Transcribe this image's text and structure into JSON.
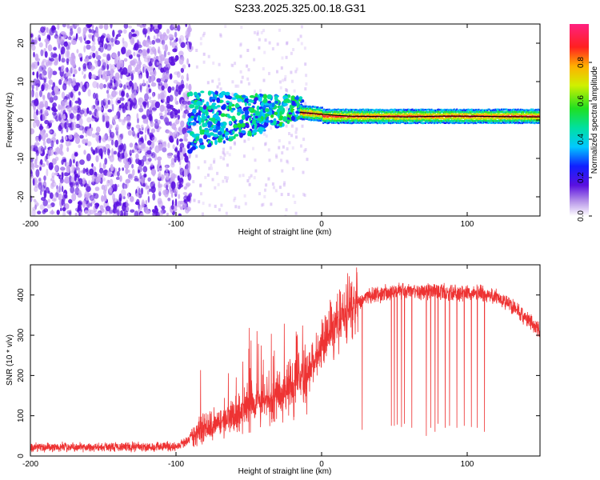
{
  "page_title": "S233.2025.325.00.18.G31",
  "colors": {
    "snr_line": "#ee3333",
    "freq_trace": "#000000",
    "noise_dark": "#5a10e0",
    "noise_light": "#c8a6f2"
  },
  "chart_data": [
    {
      "id": "spectrogram",
      "type": "heatmap",
      "title": "",
      "xlabel": "Height of straight line (km)",
      "ylabel": "Frequency (Hz)",
      "xlim": [
        -200,
        150
      ],
      "ylim": [
        -25,
        25
      ],
      "x_ticks": [
        "-200",
        "-100",
        "0",
        "100"
      ],
      "y_ticks": [
        "-20",
        "-10",
        "0",
        "10",
        "20"
      ],
      "colorbar": {
        "label": "Normalized spectral amplitude",
        "range": [
          0,
          1
        ],
        "ticks": [
          "0.0",
          "0.2",
          "0.4",
          "0.6",
          "0.8"
        ]
      },
      "regions": [
        {
          "x_range": [
            -200,
            -90
          ],
          "description": "broadband noise",
          "amplitude": [
            0.05,
            0.25
          ]
        },
        {
          "x_range": [
            -90,
            -15
          ],
          "description": "emerging signal near 0-4 Hz",
          "amplitude": [
            0.2,
            0.6
          ]
        },
        {
          "x_range": [
            -15,
            150
          ],
          "description": "strong carrier near 1 Hz",
          "amplitude": [
            0.5,
            1.0
          ]
        }
      ],
      "frequency_trace": {
        "x": [
          -15,
          0,
          10,
          20,
          40,
          60,
          80,
          100,
          120,
          150
        ],
        "y": [
          2.0,
          1.5,
          1.2,
          1.0,
          0.9,
          0.8,
          1.0,
          1.0,
          0.9,
          0.8
        ]
      }
    },
    {
      "id": "snr",
      "type": "line",
      "title": "",
      "xlabel": "Height of straight line (km)",
      "ylabel": "SNR (10 * v/v)",
      "xlim": [
        -200,
        150
      ],
      "ylim": [
        0,
        475
      ],
      "x_ticks": [
        "-200",
        "-100",
        "0",
        "100"
      ],
      "y_ticks": [
        "0",
        "100",
        "200",
        "300",
        "400"
      ],
      "series": [
        {
          "name": "SNR",
          "x": [
            -200,
            -150,
            -100,
            -95,
            -90,
            -85,
            -80,
            -70,
            -60,
            -50,
            -40,
            -30,
            -20,
            -15,
            -10,
            -5,
            0,
            5,
            10,
            15,
            20,
            25,
            30,
            40,
            50,
            60,
            70,
            80,
            90,
            100,
            110,
            115,
            120,
            130,
            140,
            150
          ],
          "y": [
            22,
            22,
            24,
            30,
            45,
            60,
            70,
            85,
            105,
            120,
            135,
            150,
            170,
            185,
            205,
            235,
            270,
            305,
            330,
            350,
            370,
            385,
            395,
            402,
            408,
            410,
            410,
            408,
            405,
            405,
            405,
            400,
            395,
            375,
            345,
            310
          ]
        }
      ],
      "dropouts": [
        {
          "x": 28,
          "y": 65
        },
        {
          "x": 48,
          "y": 75
        },
        {
          "x": 50,
          "y": 75
        },
        {
          "x": 52,
          "y": 78
        },
        {
          "x": 55,
          "y": 72
        },
        {
          "x": 57,
          "y": 80
        },
        {
          "x": 62,
          "y": 70
        },
        {
          "x": 72,
          "y": 50
        },
        {
          "x": 75,
          "y": 70
        },
        {
          "x": 78,
          "y": 60
        },
        {
          "x": 80,
          "y": 80
        },
        {
          "x": 85,
          "y": 70
        },
        {
          "x": 88,
          "y": 75
        },
        {
          "x": 93,
          "y": 70
        },
        {
          "x": 98,
          "y": 75
        },
        {
          "x": 103,
          "y": 72
        },
        {
          "x": 107,
          "y": 70
        },
        {
          "x": 112,
          "y": 60
        }
      ]
    }
  ]
}
